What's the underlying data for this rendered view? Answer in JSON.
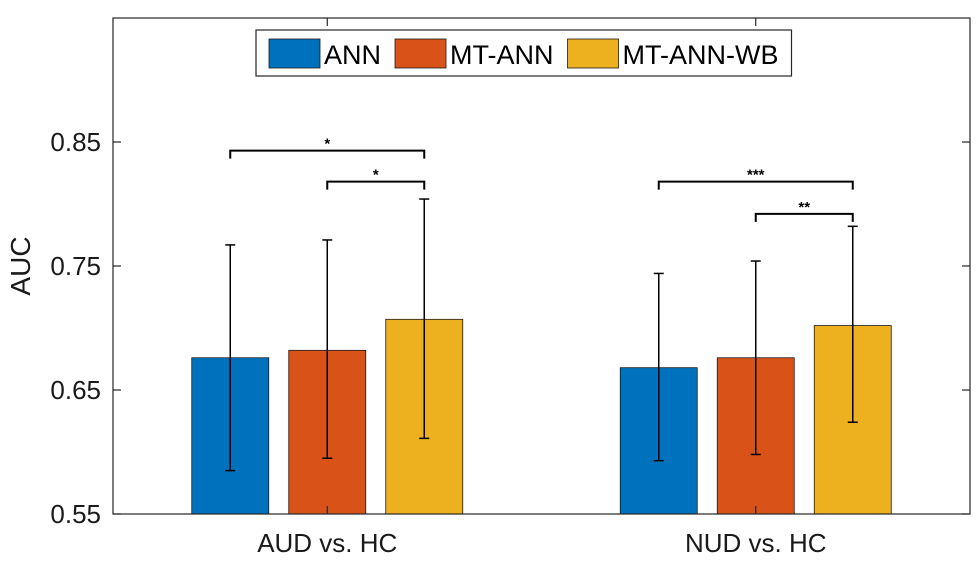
{
  "chart_data": {
    "type": "bar",
    "title": "",
    "xlabel": "",
    "ylabel": "AUC",
    "ylim": [
      0.55,
      0.95
    ],
    "yticks": [
      0.55,
      0.65,
      0.75,
      0.85
    ],
    "ytick_labels": [
      "0.55",
      "0.65",
      "0.75",
      "0.85"
    ],
    "categories": [
      "AUD vs. HC",
      "NUD vs. HC"
    ],
    "series": [
      {
        "name": "ANN",
        "color": "#0072bd",
        "values": [
          0.676,
          0.668
        ],
        "err_low": [
          0.585,
          0.593
        ],
        "err_high": [
          0.767,
          0.744
        ]
      },
      {
        "name": "MT-ANN",
        "color": "#d95319",
        "values": [
          0.682,
          0.676
        ],
        "err_low": [
          0.595,
          0.598
        ],
        "err_high": [
          0.771,
          0.754
        ]
      },
      {
        "name": "MT-ANN-WB",
        "color": "#edb120",
        "values": [
          0.707,
          0.702
        ],
        "err_low": [
          0.611,
          0.624
        ],
        "err_high": [
          0.804,
          0.782
        ]
      }
    ],
    "significance": [
      {
        "category": 0,
        "from_series": 0,
        "to_series": 2,
        "y": 0.843,
        "label": "*"
      },
      {
        "category": 0,
        "from_series": 1,
        "to_series": 2,
        "y": 0.818,
        "label": "*"
      },
      {
        "category": 1,
        "from_series": 0,
        "to_series": 2,
        "y": 0.818,
        "label": "***"
      },
      {
        "category": 1,
        "from_series": 1,
        "to_series": 2,
        "y": 0.792,
        "label": "**"
      }
    ],
    "grid": false,
    "legend": {
      "placement": "top-center",
      "orientation": "horizontal"
    }
  }
}
